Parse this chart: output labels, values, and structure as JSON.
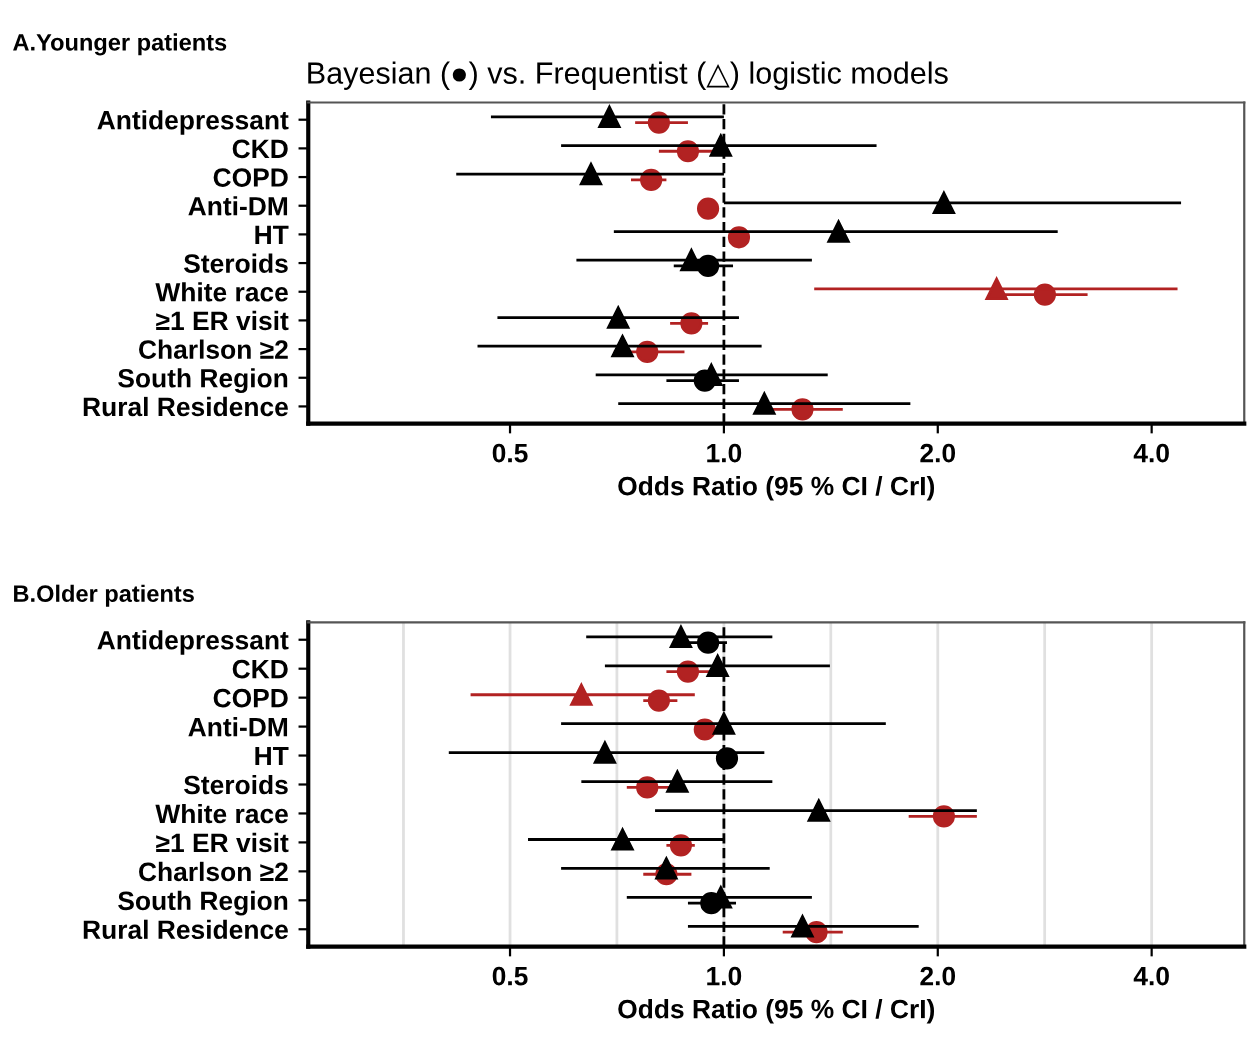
{
  "chart_data": [
    {
      "type": "scatter",
      "orientation": "horizontal",
      "title": "A.Younger patients",
      "subtitle": "Bayesian (●) vs. Frequentist (△) logistic models",
      "xlabel": "Odds Ratio (95 % CI / CrI)",
      "log": "x",
      "xlim": [
        0.26,
        5.4
      ],
      "xticks": [
        0.5,
        {
          "value": 1,
          "label": "1.0"
        },
        {
          "value": 2,
          "label": "2.0"
        },
        {
          "value": 4,
          "label": "4.0"
        }
      ],
      "grid": false,
      "legend": false,
      "categories": [
        "Antidepressant",
        "CKD",
        "COPD",
        "Anti-DM",
        "HT",
        "Steroids",
        "White race",
        "≥1 ER visit",
        "Charlson ≥2",
        "South Region",
        "Rural Residence"
      ],
      "ref_lines": [
        {
          "axis": "x",
          "value": 1.0,
          "label": null,
          "color": "#000000",
          "line_style": "dashed"
        }
      ],
      "series": [
        {
          "marker": "triangle",
          "values": [
            0.69,
            0.99,
            0.65,
            2.04,
            1.45,
            0.9,
            2.42,
            0.71,
            0.72,
            0.96,
            1.14
          ],
          "errors": [
            [
              0.47,
              1.0
            ],
            [
              0.59,
              1.64
            ],
            [
              0.42,
              1.0
            ],
            [
              1.0,
              4.4
            ],
            [
              0.7,
              2.95
            ],
            [
              0.62,
              1.33
            ],
            [
              1.34,
              4.35
            ],
            [
              0.48,
              1.05
            ],
            [
              0.45,
              1.13
            ],
            [
              0.66,
              1.4
            ],
            [
              0.71,
              1.83
            ]
          ],
          "colors": [
            "#000000",
            "#000000",
            "#000000",
            "#000000",
            "#000000",
            "#000000",
            "#b22222",
            "#000000",
            "#000000",
            "#000000",
            "#000000"
          ]
        },
        {
          "marker": "circle",
          "values": [
            0.81,
            0.89,
            0.79,
            0.95,
            1.05,
            0.95,
            2.83,
            0.9,
            0.78,
            0.94,
            1.29
          ],
          "errors": [
            [
              0.75,
              0.89
            ],
            [
              0.81,
              0.97
            ],
            [
              0.74,
              0.83
            ],
            [
              0.92,
              0.98
            ],
            [
              1.03,
              1.08
            ],
            [
              0.85,
              1.03
            ],
            [
              2.37,
              3.25
            ],
            [
              0.84,
              0.95
            ],
            [
              0.7,
              0.88
            ],
            [
              0.83,
              1.05
            ],
            [
              1.14,
              1.47
            ]
          ],
          "colors": [
            "#b22222",
            "#b22222",
            "#b22222",
            "#b22222",
            "#b22222",
            "#000000",
            "#b22222",
            "#b22222",
            "#b22222",
            "#000000",
            "#b22222"
          ]
        }
      ]
    },
    {
      "type": "scatter",
      "orientation": "horizontal",
      "title": "B.Older patients",
      "xlabel": "Odds Ratio (95 % CI / CrI)",
      "log": "x",
      "xlim": [
        0.26,
        5.4
      ],
      "xticks": [
        {
          "value": 0.354,
          "label": null
        },
        0.5,
        {
          "value": 0.707,
          "label": null
        },
        {
          "value": 1,
          "label": "1.0"
        },
        {
          "value": 1.414,
          "label": null
        },
        {
          "value": 2,
          "label": "2.0"
        },
        {
          "value": 2.828,
          "label": null
        },
        {
          "value": 4,
          "label": "4.0"
        }
      ],
      "grid": "x",
      "legend": false,
      "categories": [
        "Antidepressant",
        "CKD",
        "COPD",
        "Anti-DM",
        "HT",
        "Steroids",
        "White race",
        "≥1 ER visit",
        "Charlson ≥2",
        "South Region",
        "Rural Residence"
      ],
      "ref_lines": [
        {
          "axis": "x",
          "value": 1.0,
          "label": null,
          "color": "#000000",
          "line_style": "dashed"
        }
      ],
      "series": [
        {
          "marker": "triangle",
          "values": [
            0.87,
            0.98,
            0.63,
            1.0,
            0.68,
            0.86,
            1.36,
            0.72,
            0.83,
            0.99,
            1.29
          ],
          "errors": [
            [
              0.64,
              1.17
            ],
            [
              0.68,
              1.41
            ],
            [
              0.44,
              0.91
            ],
            [
              0.59,
              1.69
            ],
            [
              0.41,
              1.14
            ],
            [
              0.63,
              1.17
            ],
            [
              0.8,
              2.27
            ],
            [
              0.53,
              1.0
            ],
            [
              0.59,
              1.16
            ],
            [
              0.73,
              1.33
            ],
            [
              0.89,
              1.88
            ]
          ],
          "colors": [
            "#000000",
            "#000000",
            "#b22222",
            "#000000",
            "#000000",
            "#000000",
            "#000000",
            "#000000",
            "#000000",
            "#000000",
            "#000000"
          ]
        },
        {
          "marker": "circle",
          "values": [
            0.95,
            0.89,
            0.81,
            0.94,
            1.01,
            0.78,
            2.04,
            0.87,
            0.83,
            0.96,
            1.35
          ],
          "errors": [
            [
              0.89,
              1.01
            ],
            [
              0.83,
              0.96
            ],
            [
              0.77,
              0.86
            ],
            [
              0.91,
              0.97
            ],
            [
              0.99,
              1.03
            ],
            [
              0.73,
              0.84
            ],
            [
              1.82,
              2.27
            ],
            [
              0.83,
              0.91
            ],
            [
              0.77,
              0.9
            ],
            [
              0.89,
              1.04
            ],
            [
              1.21,
              1.47
            ]
          ],
          "colors": [
            "#000000",
            "#b22222",
            "#b22222",
            "#b22222",
            "#000000",
            "#b22222",
            "#b22222",
            "#b22222",
            "#b22222",
            "#000000",
            "#b22222"
          ]
        }
      ]
    }
  ]
}
